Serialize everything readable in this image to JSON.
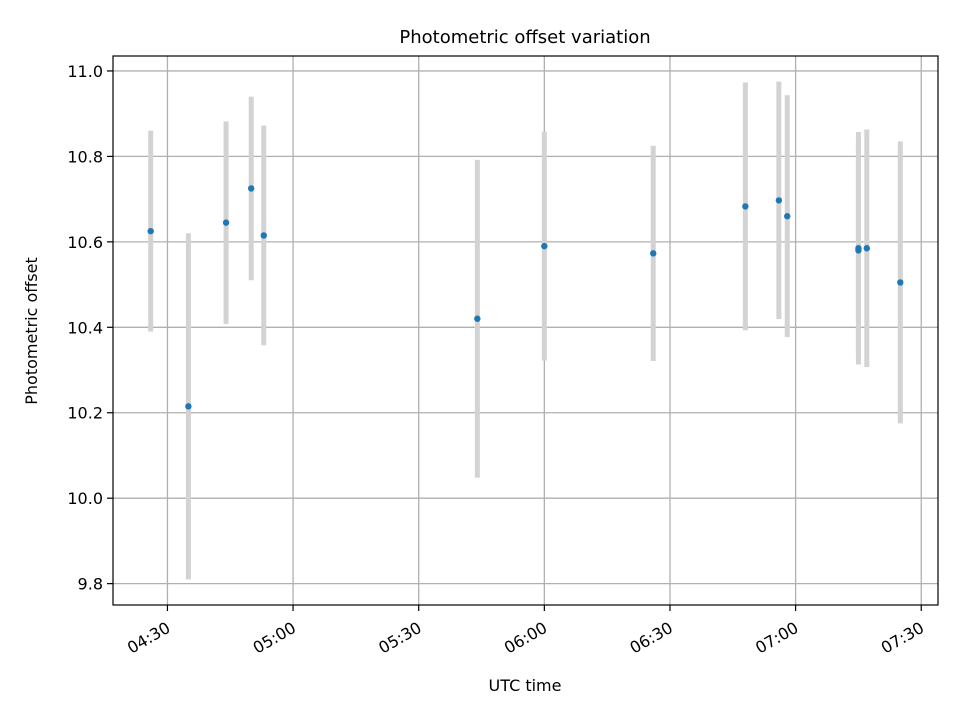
{
  "chart_data": {
    "type": "scatter",
    "title": "Photometric offset variation",
    "xlabel": "UTC time",
    "ylabel": "Photometric offset",
    "x_ticks": [
      "04:30",
      "05:00",
      "05:30",
      "06:00",
      "06:30",
      "07:00",
      "07:30"
    ],
    "y_ticks": [
      "9.8",
      "10.0",
      "10.2",
      "10.4",
      "10.6",
      "10.8",
      "11.0"
    ],
    "xlim": [
      "04:17",
      "07:34"
    ],
    "ylim": [
      9.75,
      11.035
    ],
    "grid": true,
    "point_color": "#1f77b4",
    "errorbar_color": "#d3d3d3",
    "points": [
      {
        "x": "04:26",
        "y": 10.625,
        "err": 0.235
      },
      {
        "x": "04:35",
        "y": 10.215,
        "err": 0.405
      },
      {
        "x": "04:44",
        "y": 10.645,
        "err": 0.237
      },
      {
        "x": "04:50",
        "y": 10.725,
        "err": 0.215
      },
      {
        "x": "04:53",
        "y": 10.615,
        "err": 0.257
      },
      {
        "x": "05:44",
        "y": 10.42,
        "err": 0.372
      },
      {
        "x": "06:00",
        "y": 10.59,
        "err": 0.268
      },
      {
        "x": "06:26",
        "y": 10.573,
        "err": 0.252
      },
      {
        "x": "06:48",
        "y": 10.683,
        "err": 0.29
      },
      {
        "x": "06:56",
        "y": 10.697,
        "err": 0.278
      },
      {
        "x": "06:58",
        "y": 10.66,
        "err": 0.283
      },
      {
        "x": "07:15",
        "y": 10.58,
        "err": 0.248
      },
      {
        "x": "07:15",
        "y": 10.585,
        "err": 0.272
      },
      {
        "x": "07:17",
        "y": 10.585,
        "err": 0.278
      },
      {
        "x": "07:25",
        "y": 10.505,
        "err": 0.33
      }
    ]
  }
}
